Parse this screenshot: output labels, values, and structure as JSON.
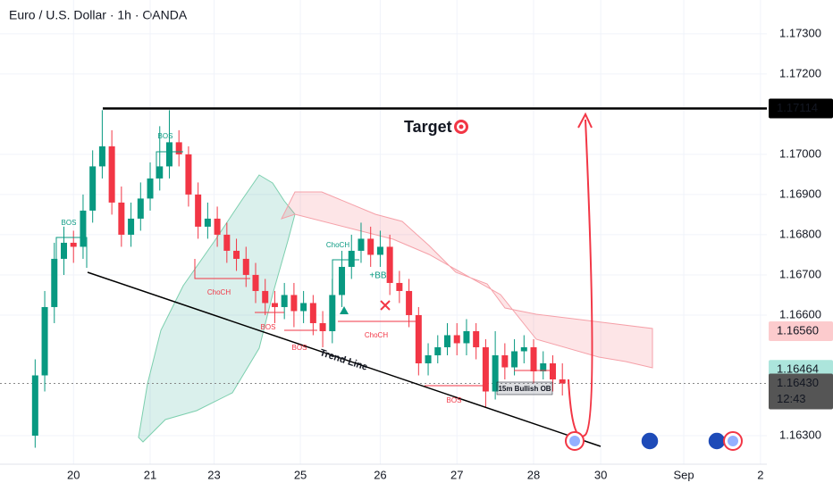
{
  "chart_data": {
    "type": "candlestick",
    "title": "Euro / U.S. Dollar · 1h · OANDA",
    "x": [
      11,
      14,
      17,
      20,
      23,
      26,
      29,
      32,
      35,
      38,
      41,
      44,
      47,
      50,
      53,
      56,
      59,
      62,
      65,
      68,
      71,
      74,
      77,
      80,
      83,
      86,
      89,
      92,
      95,
      98,
      101,
      104,
      107,
      110,
      113,
      116,
      119,
      122,
      125,
      128,
      131,
      134,
      137,
      140,
      143,
      146,
      149,
      152,
      155,
      158,
      161,
      164,
      167,
      170,
      173,
      176
    ],
    "open": [
      1.163,
      1.1645,
      1.1662,
      1.1674,
      1.1678,
      1.1677,
      1.1686,
      1.1697,
      1.1702,
      1.1688,
      1.168,
      1.1684,
      1.1689,
      1.1694,
      1.1697,
      1.1703,
      1.17,
      1.169,
      1.1682,
      1.1684,
      1.168,
      1.1676,
      1.1674,
      1.167,
      1.1666,
      1.1663,
      1.1662,
      1.1665,
      1.1661,
      1.1663,
      1.1658,
      1.1656,
      1.1665,
      1.1672,
      1.1676,
      1.1679,
      1.1675,
      1.1677,
      1.1668,
      1.1666,
      1.166,
      1.1648,
      1.165,
      1.1652,
      1.1655,
      1.1653,
      1.1656,
      1.1652,
      1.1641,
      1.165,
      1.1647,
      1.1651,
      1.1652,
      1.1646,
      1.1648,
      1.1644
    ],
    "high": [
      1.1649,
      1.1666,
      1.1678,
      1.1682,
      1.1681,
      1.169,
      1.1701,
      1.1711,
      1.1706,
      1.1692,
      1.1688,
      1.1693,
      1.1698,
      1.1707,
      1.1711,
      1.1706,
      1.1702,
      1.1693,
      1.1688,
      1.1687,
      1.1683,
      1.1679,
      1.1677,
      1.1673,
      1.1669,
      1.1666,
      1.1668,
      1.1668,
      1.1666,
      1.1665,
      1.1661,
      1.1669,
      1.1676,
      1.168,
      1.1683,
      1.1682,
      1.1681,
      1.168,
      1.1671,
      1.1669,
      1.1662,
      1.1653,
      1.1655,
      1.1658,
      1.1658,
      1.1659,
      1.1658,
      1.1654,
      1.1656,
      1.1653,
      1.1654,
      1.1655,
      1.1654,
      1.1651,
      1.165,
      1.1648
    ],
    "low": [
      1.1627,
      1.1641,
      1.1658,
      1.167,
      1.1673,
      1.1674,
      1.1683,
      1.1694,
      1.1685,
      1.1677,
      1.1677,
      1.1681,
      1.1686,
      1.1691,
      1.1694,
      1.1697,
      1.1687,
      1.1679,
      1.1679,
      1.1677,
      1.1673,
      1.1671,
      1.1667,
      1.1663,
      1.166,
      1.1658,
      1.1659,
      1.1657,
      1.1658,
      1.1655,
      1.1652,
      1.1653,
      1.1662,
      1.1669,
      1.1673,
      1.1672,
      1.1672,
      1.1665,
      1.1663,
      1.1657,
      1.1645,
      1.1645,
      1.1648,
      1.165,
      1.165,
      1.165,
      1.1649,
      1.1637,
      1.1639,
      1.1644,
      1.1645,
      1.1648,
      1.1643,
      1.1644,
      1.1641,
      1.164
    ],
    "close": [
      1.1645,
      1.1662,
      1.1674,
      1.1678,
      1.1677,
      1.1686,
      1.1697,
      1.1702,
      1.1688,
      1.168,
      1.1684,
      1.1689,
      1.1694,
      1.1697,
      1.1703,
      1.17,
      1.169,
      1.1682,
      1.1684,
      1.168,
      1.1676,
      1.1674,
      1.167,
      1.1666,
      1.1663,
      1.1662,
      1.1665,
      1.1661,
      1.1663,
      1.1658,
      1.1656,
      1.1665,
      1.1672,
      1.1676,
      1.1679,
      1.1675,
      1.1677,
      1.1668,
      1.1666,
      1.166,
      1.1648,
      1.165,
      1.1652,
      1.1655,
      1.1653,
      1.1656,
      1.1652,
      1.1641,
      1.165,
      1.1647,
      1.1651,
      1.1652,
      1.1646,
      1.1648,
      1.1644,
      1.1643
    ],
    "up_color": "#089981",
    "down_color": "#f23645",
    "xlim": [
      0,
      240
    ],
    "ylim": [
      1.16229,
      1.17384
    ],
    "yticks": [
      {
        "value": 1.173,
        "label": "1.17300"
      },
      {
        "value": 1.172,
        "label": "1.17200"
      },
      {
        "value": 1.17,
        "label": "1.17000"
      },
      {
        "value": 1.169,
        "label": "1.16900"
      },
      {
        "value": 1.168,
        "label": "1.16800"
      },
      {
        "value": 1.167,
        "label": "1.16700"
      },
      {
        "value": 1.166,
        "label": "1.16600"
      },
      {
        "value": 1.163,
        "label": "1.16300"
      }
    ],
    "xticks": [
      {
        "value": 23,
        "label": "20"
      },
      {
        "value": 47,
        "label": "21"
      },
      {
        "value": 67,
        "label": "23"
      },
      {
        "value": 94,
        "label": "25"
      },
      {
        "value": 119,
        "label": "26"
      },
      {
        "value": 143,
        "label": "27"
      },
      {
        "value": 167,
        "label": "28"
      },
      {
        "value": 188,
        "label": "30"
      },
      {
        "value": 214,
        "label": "Sep"
      },
      {
        "value": 238,
        "label": "2"
      }
    ],
    "price_labels": [
      {
        "value": 1.17114,
        "label": "1.17114",
        "color": "#000000"
      },
      {
        "value": 1.1656,
        "label": "1.16560",
        "color": "#fccbcd"
      },
      {
        "value": 1.16464,
        "label": "1.16464",
        "color": "#ace5dc"
      },
      {
        "value": 1.1643,
        "label": "1.16430",
        "color": "#555555",
        "time": "12:43"
      }
    ],
    "annotations": [
      "Target",
      "Trend Line",
      "15m Bullish OB",
      "BOS",
      "BOS",
      "ChoCH",
      "BOS",
      "BOS",
      "ChoCH",
      "ChoCH",
      "BOS",
      "+BB"
    ]
  }
}
